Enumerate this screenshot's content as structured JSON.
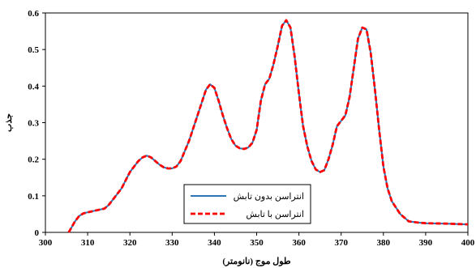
{
  "chart_data": {
    "type": "line",
    "title": "",
    "xlabel": "طول موج (نانومتر)",
    "ylabel": "جذب",
    "xlim": [
      300,
      400
    ],
    "ylim": [
      0,
      0.6
    ],
    "x_ticks": [
      300,
      310,
      320,
      330,
      340,
      350,
      360,
      370,
      380,
      390,
      400
    ],
    "y_ticks": [
      0,
      0.1,
      0.2,
      0.3,
      0.4,
      0.5,
      0.6
    ],
    "grid": false,
    "legend_position": "bottom-center",
    "x": [
      305.5,
      306,
      307,
      308,
      309,
      310,
      312,
      314,
      315,
      316,
      318,
      320,
      321,
      322,
      323,
      324,
      325,
      326,
      327,
      328,
      329,
      330,
      331,
      332,
      334,
      336,
      338,
      339,
      340,
      341,
      342,
      343,
      344,
      345,
      346,
      347,
      348,
      349,
      350,
      351,
      352,
      353,
      354,
      355,
      356,
      357,
      358,
      359,
      360,
      361,
      362,
      363,
      364,
      365,
      366,
      367,
      368,
      369,
      370,
      371,
      372,
      373,
      374,
      375,
      376,
      377,
      378,
      379,
      380,
      381,
      382,
      384,
      386,
      388,
      390,
      395,
      400
    ],
    "series": [
      {
        "name": "انتراسن بدون تابش",
        "color": "#2e75b6",
        "style": "solid",
        "values": [
          0.0,
          0.01,
          0.03,
          0.045,
          0.052,
          0.055,
          0.06,
          0.065,
          0.075,
          0.09,
          0.12,
          0.165,
          0.18,
          0.195,
          0.205,
          0.21,
          0.205,
          0.195,
          0.185,
          0.178,
          0.175,
          0.175,
          0.18,
          0.195,
          0.25,
          0.32,
          0.39,
          0.405,
          0.395,
          0.36,
          0.32,
          0.285,
          0.255,
          0.237,
          0.23,
          0.228,
          0.232,
          0.245,
          0.28,
          0.36,
          0.405,
          0.42,
          0.46,
          0.51,
          0.565,
          0.58,
          0.56,
          0.48,
          0.38,
          0.29,
          0.235,
          0.195,
          0.172,
          0.165,
          0.17,
          0.2,
          0.24,
          0.29,
          0.305,
          0.32,
          0.37,
          0.45,
          0.53,
          0.56,
          0.555,
          0.49,
          0.39,
          0.28,
          0.18,
          0.12,
          0.085,
          0.05,
          0.03,
          0.027,
          0.025,
          0.024,
          0.022
        ]
      },
      {
        "name": "انتراسن با تابش",
        "color": "#ff0000",
        "style": "dashed",
        "values": [
          0.0,
          0.01,
          0.03,
          0.045,
          0.052,
          0.055,
          0.06,
          0.065,
          0.075,
          0.09,
          0.12,
          0.165,
          0.18,
          0.195,
          0.205,
          0.21,
          0.205,
          0.195,
          0.185,
          0.178,
          0.175,
          0.175,
          0.18,
          0.195,
          0.25,
          0.32,
          0.39,
          0.405,
          0.395,
          0.36,
          0.32,
          0.285,
          0.255,
          0.237,
          0.23,
          0.228,
          0.232,
          0.245,
          0.28,
          0.36,
          0.405,
          0.42,
          0.46,
          0.51,
          0.565,
          0.58,
          0.56,
          0.48,
          0.38,
          0.29,
          0.235,
          0.195,
          0.172,
          0.165,
          0.17,
          0.2,
          0.24,
          0.29,
          0.305,
          0.32,
          0.37,
          0.45,
          0.53,
          0.56,
          0.555,
          0.49,
          0.39,
          0.28,
          0.18,
          0.12,
          0.085,
          0.05,
          0.03,
          0.027,
          0.025,
          0.024,
          0.022
        ]
      }
    ]
  }
}
